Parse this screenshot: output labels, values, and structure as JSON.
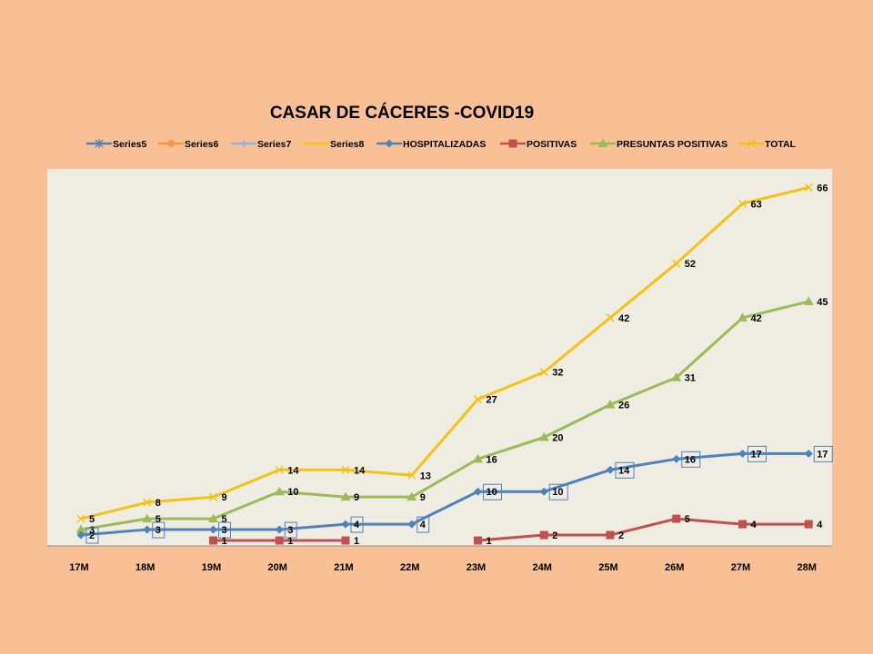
{
  "chart_data": {
    "type": "line",
    "title": "CASAR DE CÁCERES -COVID19",
    "xlabel": "",
    "ylabel": "",
    "ylim": [
      0,
      70
    ],
    "grid": false,
    "legend_position": "top",
    "plot_background": "#efece1",
    "categories": [
      "17M",
      "18M",
      "19M",
      "20M",
      "21M",
      "22M",
      "23M",
      "24M",
      "25M",
      "26M",
      "27M",
      "28M"
    ],
    "legend": [
      {
        "name": "Series5",
        "color": "#4f81bd",
        "marker": "star"
      },
      {
        "name": "Series6",
        "color": "#f79646",
        "marker": "circle"
      },
      {
        "name": "Series7",
        "color": "#8eb4e3",
        "marker": "plus"
      },
      {
        "name": "Series8",
        "color": "#f2c314",
        "marker": "none"
      },
      {
        "name": "HOSPITALIZADAS",
        "color": "#4f81bd",
        "marker": "diamond"
      },
      {
        "name": "POSITIVAS",
        "color": "#c0504d",
        "marker": "square"
      },
      {
        "name": "PRESUNTAS POSITIVAS",
        "color": "#9bbb59",
        "marker": "triangle"
      },
      {
        "name": "TOTAL",
        "color": "#f2c314",
        "marker": "x"
      }
    ],
    "series": [
      {
        "name": "TOTAL",
        "color": "#f2c314",
        "marker": "x",
        "boxed": false,
        "values": [
          5,
          8,
          9,
          14,
          14,
          13,
          27,
          32,
          42,
          52,
          63,
          66
        ]
      },
      {
        "name": "PRESUNTAS POSITIVAS",
        "color": "#9bbb59",
        "marker": "triangle",
        "boxed": false,
        "values": [
          3,
          5,
          5,
          10,
          9,
          9,
          16,
          20,
          26,
          31,
          42,
          45
        ]
      },
      {
        "name": "HOSPITALIZADAS",
        "color": "#4f81bd",
        "marker": "diamond",
        "boxed": true,
        "values": [
          2,
          3,
          3,
          3,
          4,
          4,
          10,
          10,
          14,
          16,
          17,
          17
        ]
      },
      {
        "name": "POSITIVAS",
        "color": "#c0504d",
        "marker": "square",
        "boxed": false,
        "values": [
          null,
          null,
          1,
          1,
          1,
          null,
          1,
          2,
          2,
          5,
          4,
          4
        ]
      }
    ]
  }
}
